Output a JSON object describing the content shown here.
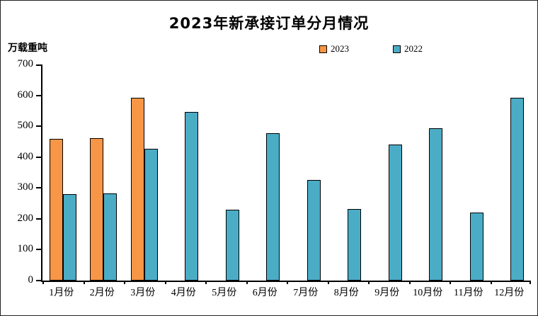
{
  "title": "2023年新承接订单分月情况",
  "y_unit_label": "万载重吨",
  "legend": [
    {
      "label": "2023",
      "color": "#F79646"
    },
    {
      "label": "2022",
      "color": "#4BACC6"
    }
  ],
  "chart_data": {
    "type": "bar",
    "title": "2023年新承接订单分月情况",
    "ylabel": "万载重吨",
    "xlabel": "",
    "categories": [
      "1月份",
      "2月份",
      "3月份",
      "4月份",
      "5月份",
      "6月份",
      "7月份",
      "8月份",
      "9月份",
      "10月份",
      "11月份",
      "12月份"
    ],
    "series": [
      {
        "name": "2023",
        "color": "#F79646",
        "values": [
          460,
          462,
          593,
          null,
          null,
          null,
          null,
          null,
          null,
          null,
          null,
          null
        ]
      },
      {
        "name": "2022",
        "color": "#4BACC6",
        "values": [
          280,
          283,
          428,
          547,
          230,
          477,
          326,
          232,
          440,
          493,
          220,
          592
        ]
      }
    ],
    "ylim": [
      0,
      700
    ],
    "ytick_step": 100,
    "grid": false,
    "legend_position": "top"
  }
}
